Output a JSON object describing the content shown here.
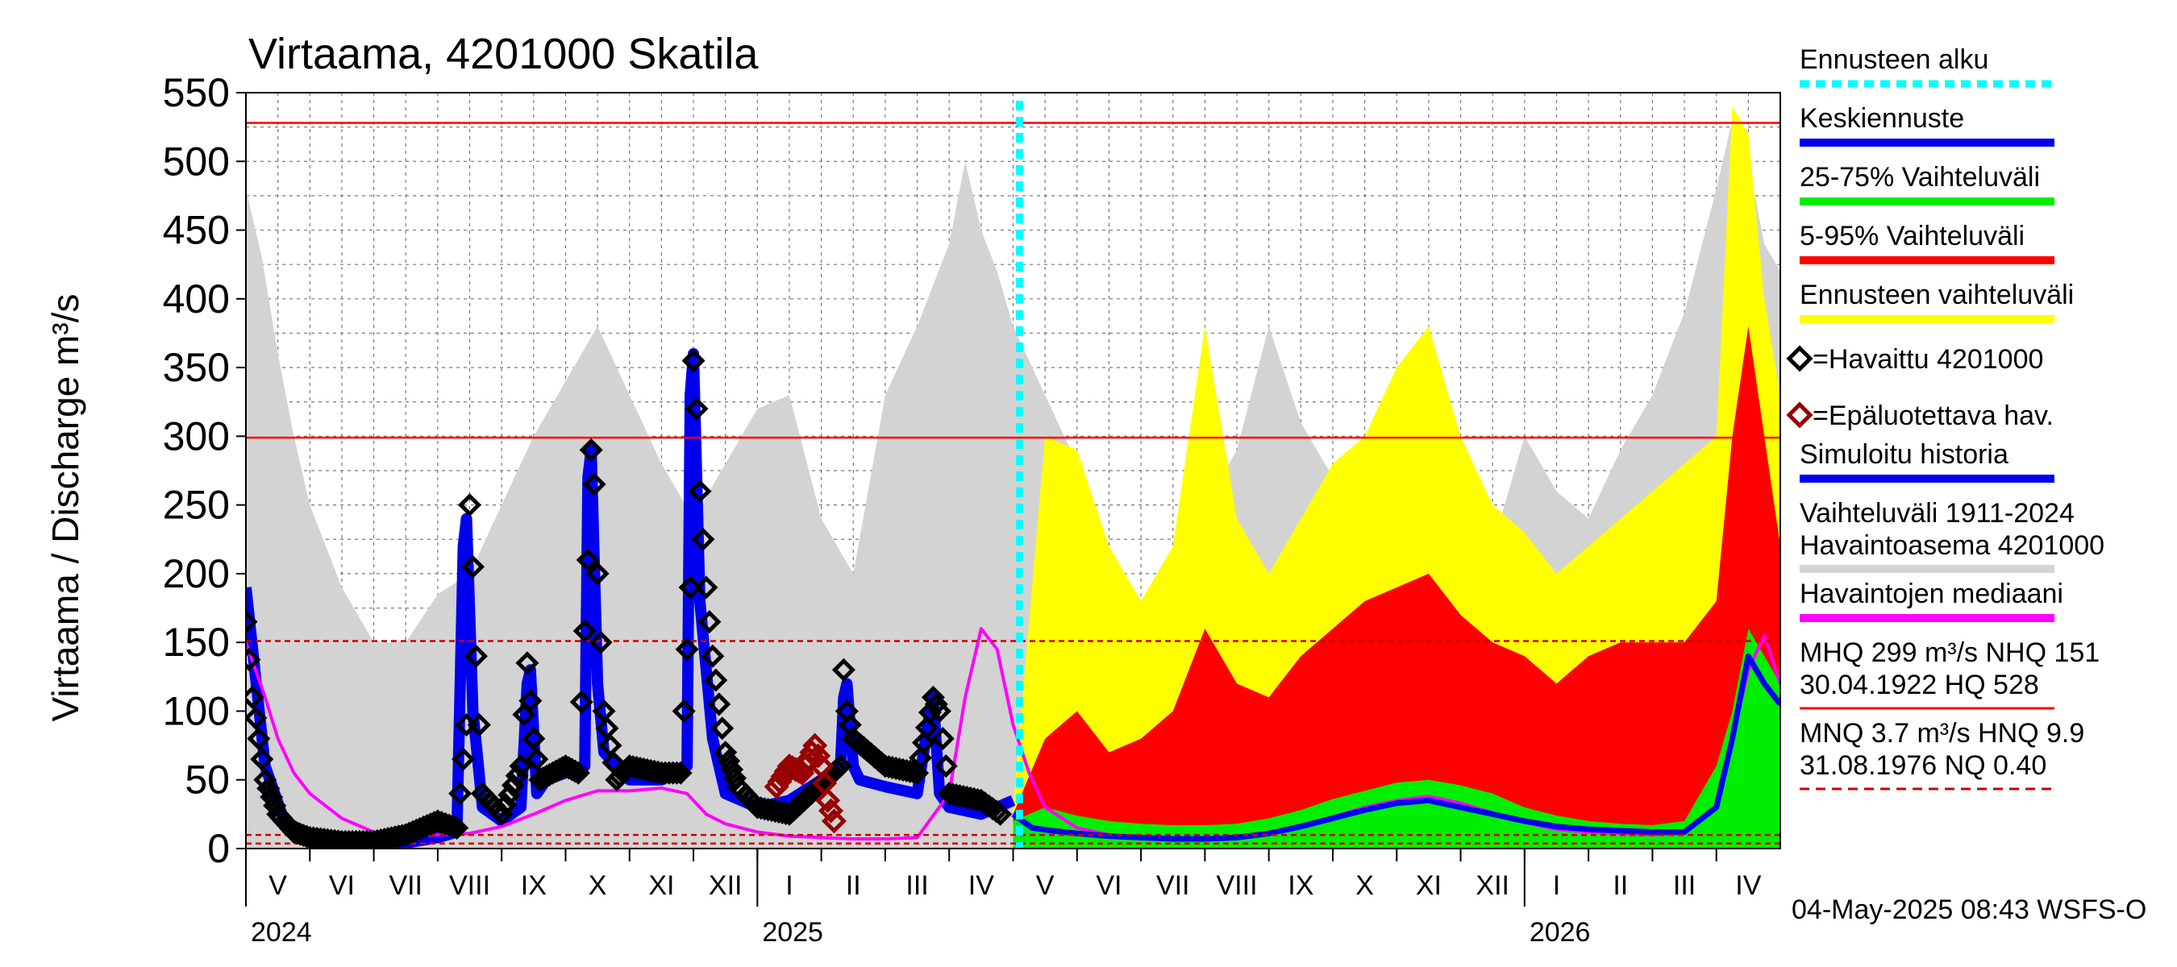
{
  "chart_data": {
    "type": "area",
    "title": "Virtaama, 4201000 Skatila",
    "ylabel": "Virtaama / Discharge    m³/s",
    "ylim": [
      0,
      550
    ],
    "yticks": [
      "0",
      "50",
      "100",
      "150",
      "200",
      "250",
      "300",
      "350",
      "400",
      "450",
      "500",
      "550"
    ],
    "months": [
      "V",
      "VI",
      "VII",
      "VIII",
      "IX",
      "X",
      "XI",
      "XII",
      "I",
      "II",
      "III",
      "IV",
      "V",
      "VI",
      "VII",
      "VIII",
      "IX",
      "X",
      "XI",
      "XII",
      "I",
      "II",
      "III",
      "IV"
    ],
    "years": [
      "2024",
      "2025",
      "2026"
    ],
    "forecast_start": "2025-05-04",
    "reference_lines": [
      {
        "name": "HQ",
        "value": 528,
        "color": "#ff0000",
        "style": "solid"
      },
      {
        "name": "MHQ",
        "value": 299,
        "color": "#ff0000",
        "style": "solid"
      },
      {
        "name": "NHQ",
        "value": 151,
        "color": "#cc0000",
        "style": "dashed"
      },
      {
        "name": "HNQ",
        "value": 9.9,
        "color": "#cc0000",
        "style": "dashed"
      },
      {
        "name": "MNQ",
        "value": 3.7,
        "color": "#cc0000",
        "style": "dashed"
      }
    ],
    "colors": {
      "history_range": "#d3d3d3",
      "forecast_range": "#ffff00",
      "p5_95": "#ff0000",
      "p25_75": "#00ee00",
      "mean_forecast": "#0000ee",
      "simulated": "#0000ee",
      "median": "#ff00ff",
      "observed": "#000000",
      "unreliable": "#990000",
      "forecast_marker": "#00ffff"
    },
    "series": [
      {
        "name": "Vaihteluväli 1911-2024 Havaintoasema 4201000",
        "x": [
          0,
          0.25,
          0.5,
          0.75,
          1,
          1.25,
          1.5,
          2,
          2.5,
          3,
          3.5,
          4,
          4.5,
          5,
          5.5,
          6,
          6.5,
          7,
          7.5,
          8,
          8.5,
          9,
          9.5,
          10,
          10.5,
          11,
          11.25,
          11.5,
          11.75,
          12,
          12.5,
          13,
          13.5,
          14,
          14.5,
          15,
          15.5,
          16,
          16.5,
          17,
          17.5,
          18,
          18.5,
          19,
          19.5,
          20,
          20.5,
          21,
          21.5,
          22,
          22.5,
          23,
          23.25,
          23.5,
          23.75,
          24
        ],
        "y": [
          480,
          430,
          360,
          300,
          250,
          220,
          190,
          150,
          150,
          185,
          200,
          250,
          300,
          340,
          380,
          330,
          280,
          240,
          280,
          320,
          330,
          240,
          200,
          330,
          380,
          440,
          500,
          450,
          420,
          380,
          330,
          280,
          210,
          150,
          180,
          250,
          290,
          380,
          310,
          270,
          300,
          260,
          230,
          220,
          220,
          300,
          260,
          240,
          290,
          330,
          390,
          480,
          530,
          500,
          440,
          420
        ]
      },
      {
        "name": "Ennusteen vaihteluväli",
        "x": [
          12,
          12.5,
          13,
          13.5,
          14,
          14.5,
          15,
          15.5,
          16,
          16.5,
          17,
          17.5,
          18,
          18.5,
          19,
          19.5,
          20,
          20.5,
          21,
          21.5,
          22,
          22.5,
          23,
          23.25,
          23.5,
          23.75,
          24
        ],
        "y": [
          30,
          300,
          290,
          220,
          180,
          220,
          380,
          240,
          200,
          240,
          280,
          300,
          350,
          380,
          300,
          250,
          230,
          200,
          220,
          240,
          260,
          280,
          300,
          540,
          520,
          400,
          330
        ]
      },
      {
        "name": "5-95% Vaihteluväli",
        "x": [
          12,
          12.5,
          13,
          13.5,
          14,
          14.5,
          15,
          15.5,
          16,
          16.5,
          17,
          17.5,
          18,
          18.5,
          19,
          19.5,
          20,
          20.5,
          21,
          21.5,
          22,
          22.5,
          23,
          23.25,
          23.5,
          23.75,
          24
        ],
        "y": [
          25,
          80,
          100,
          70,
          80,
          100,
          160,
          120,
          110,
          140,
          160,
          180,
          190,
          200,
          170,
          150,
          140,
          120,
          140,
          150,
          150,
          150,
          180,
          300,
          380,
          300,
          220
        ]
      },
      {
        "name": "25-75% Vaihteluväli",
        "x": [
          12,
          12.5,
          13,
          13.5,
          14,
          14.5,
          15,
          15.5,
          16,
          16.5,
          17,
          17.5,
          18,
          18.5,
          19,
          19.5,
          20,
          20.5,
          21,
          21.5,
          22,
          22.5,
          23,
          23.25,
          23.5,
          23.75,
          24
        ],
        "y": [
          20,
          30,
          24,
          20,
          18,
          17,
          17,
          18,
          22,
          28,
          36,
          42,
          48,
          50,
          46,
          40,
          30,
          24,
          20,
          18,
          17,
          20,
          60,
          100,
          160,
          140,
          120
        ]
      },
      {
        "name": "Keskiennuste",
        "x": [
          12,
          12.3,
          12.6,
          13,
          13.5,
          14,
          14.5,
          15,
          15.5,
          16,
          16.5,
          17,
          17.5,
          18,
          18.5,
          19,
          19.5,
          20,
          20.5,
          21,
          21.5,
          22,
          22.5,
          23,
          23.25,
          23.5,
          23.75,
          24
        ],
        "y": [
          25,
          15,
          13,
          11,
          9,
          8,
          7,
          7,
          8,
          11,
          16,
          22,
          28,
          33,
          35,
          30,
          25,
          20,
          16,
          14,
          13,
          12,
          12,
          30,
          80,
          140,
          120,
          105
        ]
      },
      {
        "name": "Havaintojen mediaani",
        "x": [
          0,
          0.15,
          0.3,
          0.5,
          0.75,
          1,
          1.5,
          2,
          2.5,
          3,
          3.5,
          4,
          4.5,
          5,
          5.5,
          6,
          6.5,
          6.9,
          7.2,
          7.5,
          8,
          8.5,
          9,
          9.5,
          10,
          10.5,
          11,
          11.25,
          11.5,
          11.75,
          12,
          12.25,
          12.5,
          13,
          13.5,
          14,
          14.5,
          15,
          15.5,
          16,
          16.5,
          17,
          17.5,
          18,
          18.5,
          19,
          19.5,
          20,
          20.5,
          21,
          21.5,
          22,
          22.5,
          23,
          23.25,
          23.5,
          23.75,
          24
        ],
        "y": [
          150,
          130,
          110,
          80,
          55,
          40,
          22,
          12,
          10,
          10,
          11,
          16,
          25,
          35,
          42,
          42,
          44,
          40,
          25,
          18,
          12,
          9,
          8,
          7,
          7,
          8,
          40,
          110,
          160,
          145,
          90,
          55,
          30,
          15,
          10,
          8,
          7,
          7,
          8,
          11,
          17,
          23,
          30,
          35,
          38,
          33,
          26,
          19,
          14,
          12,
          11,
          10,
          11,
          30,
          80,
          130,
          155,
          120
        ]
      },
      {
        "name": "Simuloitu historia",
        "x": [
          0,
          0.3,
          0.6,
          1,
          1.5,
          2,
          2.5,
          3,
          3.3,
          3.4,
          3.45,
          3.55,
          3.7,
          4,
          4.3,
          4.4,
          4.45,
          4.55,
          4.7,
          5,
          5.3,
          5.35,
          5.4,
          5.5,
          5.6,
          6,
          6.5,
          6.9,
          6.95,
          7.0,
          7.1,
          7.3,
          7.5,
          8,
          8.5,
          9,
          9.3,
          9.35,
          9.4,
          9.5,
          9.6,
          10,
          10.5,
          10.7,
          10.75,
          10.85,
          11,
          11.5,
          12
        ],
        "y": [
          190,
          60,
          20,
          10,
          4,
          3,
          4,
          8,
          12,
          220,
          240,
          100,
          30,
          20,
          30,
          120,
          130,
          40,
          50,
          55,
          60,
          270,
          290,
          120,
          70,
          50,
          50,
          60,
          330,
          360,
          180,
          80,
          40,
          30,
          35,
          50,
          60,
          110,
          120,
          60,
          50,
          45,
          40,
          100,
          110,
          40,
          30,
          25,
          35
        ]
      },
      {
        "name": "Havaittu 4201000",
        "x": [
          0,
          0.1,
          0.2,
          0.3,
          0.5,
          0.75,
          1,
          1.5,
          2,
          2.5,
          3,
          3.3,
          3.45,
          3.5,
          3.55,
          3.6,
          3.7,
          4,
          4.3,
          4.4,
          4.5,
          4.6,
          4.8,
          5,
          5.2,
          5.35,
          5.4,
          5.45,
          5.5,
          5.6,
          5.8,
          6,
          6.5,
          6.8,
          6.95,
          7.0,
          7.05,
          7.1,
          7.2,
          7.3,
          7.5,
          7.7,
          8,
          8.5,
          9.3,
          9.35,
          9.4,
          9.5,
          10,
          10.5,
          10.75,
          10.85,
          11,
          11.5,
          11.8
        ],
        "y": [
          165,
          110,
          80,
          50,
          25,
          12,
          8,
          5,
          5,
          10,
          20,
          15,
          90,
          250,
          205,
          140,
          40,
          25,
          60,
          135,
          80,
          50,
          55,
          60,
          55,
          210,
          290,
          265,
          200,
          100,
          50,
          60,
          55,
          55,
          190,
          355,
          320,
          260,
          190,
          140,
          70,
          45,
          30,
          25,
          60,
          130,
          100,
          80,
          60,
          55,
          110,
          100,
          40,
          35,
          25
        ]
      },
      {
        "name": "Epäluotettava hav.",
        "x": [
          8.3,
          8.5,
          8.7,
          8.9,
          9.0,
          9.1,
          9.2
        ],
        "y": [
          45,
          60,
          55,
          75,
          60,
          35,
          20
        ]
      }
    ]
  },
  "legend": [
    {
      "label": "Ennusteen alku",
      "kind": "dashed-line",
      "color": "#00ffff"
    },
    {
      "label": "Keskiennuste",
      "kind": "line",
      "color": "#0000ee"
    },
    {
      "label": "25-75% Vaihteluväli",
      "kind": "line",
      "color": "#00ee00"
    },
    {
      "label": "5-95% Vaihteluväli",
      "kind": "line",
      "color": "#ff0000"
    },
    {
      "label": "Ennusteen vaihteluväli",
      "kind": "line",
      "color": "#ffff00"
    },
    {
      "label": "=Havaittu 4201000",
      "kind": "marker",
      "color": "#000000"
    },
    {
      "label": "=Epäluotettava hav.",
      "kind": "marker",
      "color": "#990000"
    },
    {
      "label": "Simuloitu historia",
      "kind": "line",
      "color": "#0000ee"
    },
    {
      "label": "Vaihteluväli 1911-2024",
      "label2": " Havaintoasema 4201000",
      "kind": "line",
      "color": "#d3d3d3"
    },
    {
      "label": "Havaintojen mediaani",
      "kind": "line",
      "color": "#ff00ff"
    },
    {
      "label": "MHQ  299 m³/s NHQ  151",
      "label2": "30.04.1922 HQ  528",
      "kind": "line",
      "color": "#ff0000"
    },
    {
      "label": "MNQ  3.7 m³/s HNQ  9.9",
      "label2": "31.08.1976 NQ 0.40",
      "kind": "dashed-line",
      "color": "#cc0000"
    }
  ],
  "footer": "04-May-2025 08:43 WSFS-O"
}
